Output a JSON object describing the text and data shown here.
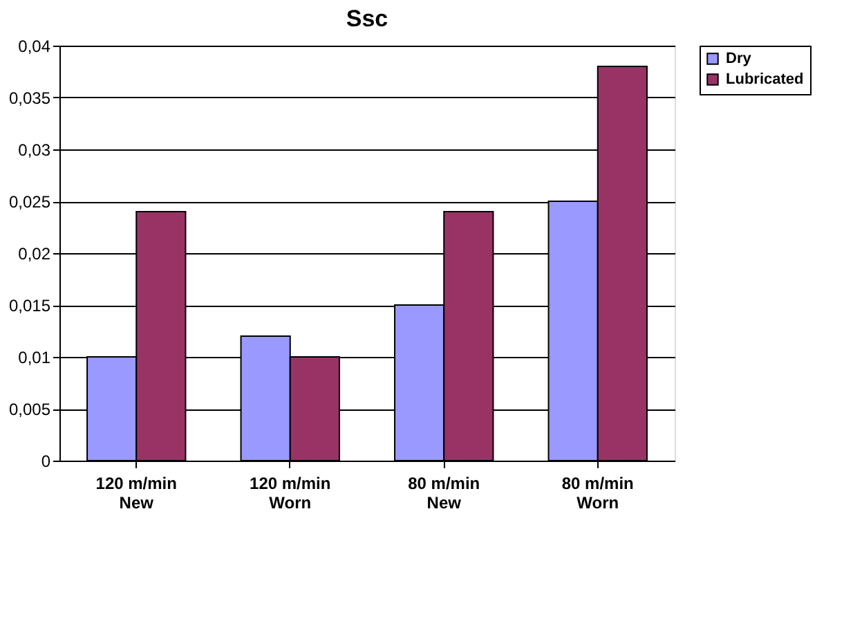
{
  "chart_data": {
    "type": "bar",
    "title": "Ssc",
    "categories": [
      "120 m/min\nNew",
      "120 m/min\nWorn",
      "80 m/min\nNew",
      "80 m/min\nWorn"
    ],
    "series": [
      {
        "name": "Dry",
        "color": "#9999ff",
        "values": [
          0.01,
          0.012,
          0.015,
          0.025
        ]
      },
      {
        "name": "Lubricated",
        "color": "#993366",
        "values": [
          0.024,
          0.01,
          0.024,
          0.038
        ]
      }
    ],
    "ylim": [
      0,
      0.04
    ],
    "yticks": [
      {
        "value": 0,
        "label": "0"
      },
      {
        "value": 0.005,
        "label": "0,005"
      },
      {
        "value": 0.01,
        "label": "0,01"
      },
      {
        "value": 0.015,
        "label": "0,015"
      },
      {
        "value": 0.02,
        "label": "0,02"
      },
      {
        "value": 0.025,
        "label": "0,025"
      },
      {
        "value": 0.03,
        "label": "0,03"
      },
      {
        "value": 0.035,
        "label": "0,035"
      },
      {
        "value": 0.04,
        "label": "0,04"
      }
    ],
    "grid": "y",
    "legend": "right"
  }
}
